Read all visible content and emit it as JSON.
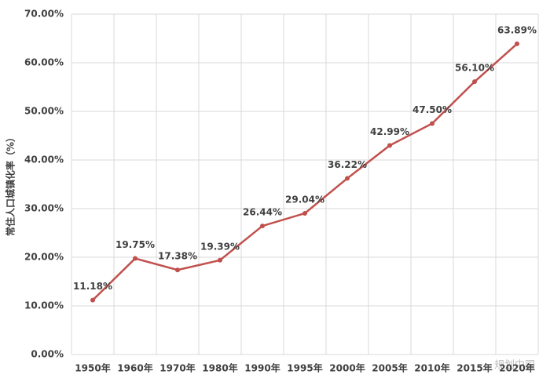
{
  "chart_data": {
    "type": "line",
    "y_label": "常住人口城镇化率（%）",
    "categories": [
      "1950年",
      "1960年",
      "1970年",
      "1980年",
      "1990年",
      "1995年",
      "2000年",
      "2005年",
      "2010年",
      "2015年",
      "2020年"
    ],
    "series": [
      {
        "name": "常住人口城镇化率",
        "color": "#c0504d",
        "values": [
          11.18,
          19.75,
          17.38,
          19.39,
          26.44,
          29.04,
          36.22,
          42.99,
          47.5,
          56.1,
          63.89
        ],
        "value_labels": [
          "11.18%",
          "19.75%",
          "17.38%",
          "19.39%",
          "26.44%",
          "29.04%",
          "36.22%",
          "42.99%",
          "47.50%",
          "56.10%",
          "63.89%"
        ]
      }
    ],
    "ylim": [
      0,
      70
    ],
    "yticks": [
      {
        "value": 0,
        "label": "0.00%"
      },
      {
        "value": 10,
        "label": "10.00%"
      },
      {
        "value": 20,
        "label": "20.00%"
      },
      {
        "value": 30,
        "label": "30.00%"
      },
      {
        "value": 40,
        "label": "40.00%"
      },
      {
        "value": 50,
        "label": "50.00%"
      },
      {
        "value": 60,
        "label": "60.00%"
      },
      {
        "value": 70,
        "label": "70.00%"
      }
    ],
    "grid": true,
    "watermark": "规划中国"
  }
}
